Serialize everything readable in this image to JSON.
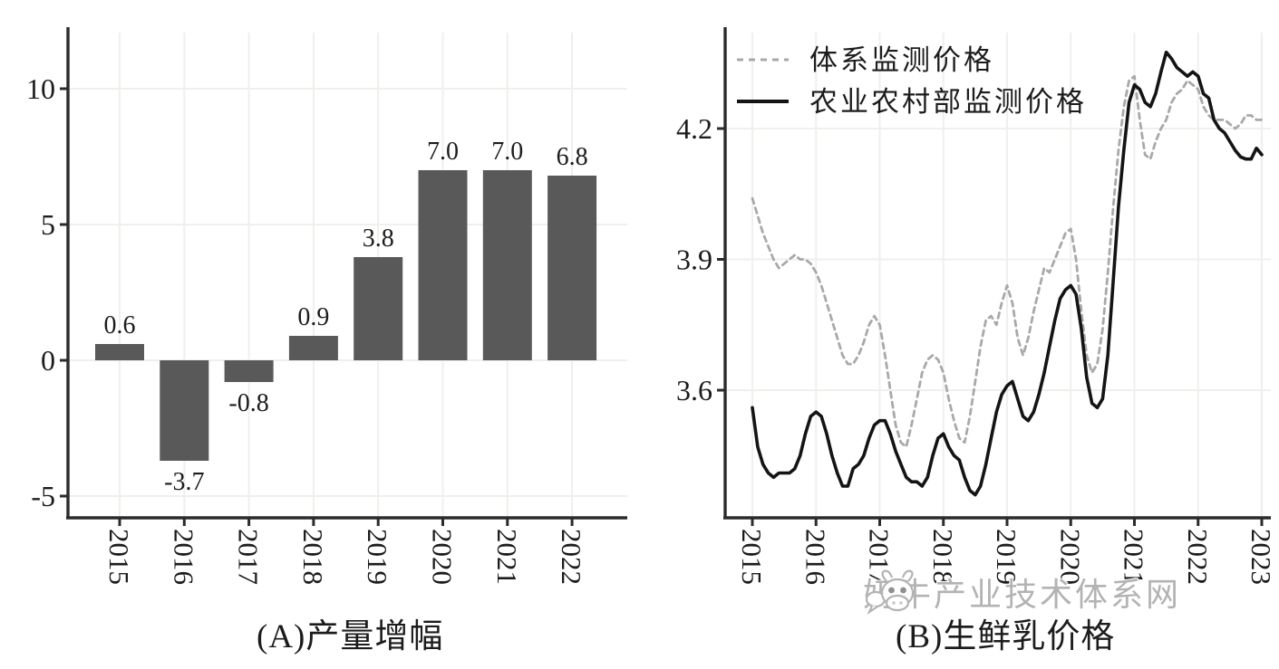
{
  "colors": {
    "bar": "#595959",
    "axis": "#2b2b2b",
    "grid": "#f0efec",
    "label_text": "#1c1c1c",
    "dashed_series": "#a9a9a9",
    "solid_series": "#141414",
    "watermark": "#a8a8a8"
  },
  "watermark": {
    "icon": "cow-face-icon",
    "text": "奶牛产业技术体系网"
  },
  "chart_data": [
    {
      "type": "bar",
      "title": "(A)产量增幅",
      "categories": [
        "2015",
        "2016",
        "2017",
        "2018",
        "2019",
        "2020",
        "2021",
        "2022"
      ],
      "values": [
        0.6,
        -3.7,
        -0.8,
        0.9,
        3.8,
        7.0,
        7.0,
        6.8
      ],
      "bar_labels": [
        "0.6",
        "-3.7",
        "-0.8",
        "0.9",
        "3.8",
        "7.0",
        "7.0",
        "6.8"
      ],
      "y_ticks": [
        10,
        5,
        0,
        -5
      ],
      "ylim": [
        -6.6,
        12.3
      ],
      "grid": true,
      "legend_position": "none"
    },
    {
      "type": "line",
      "title": "(B)生鲜乳价格",
      "x_ticks": [
        "2015",
        "2016",
        "2017",
        "2018",
        "2019",
        "2020",
        "2021",
        "2022",
        "2023"
      ],
      "y_ticks": [
        "4.2",
        "3.9",
        "3.6"
      ],
      "y_tick_values": [
        4.2,
        3.9,
        3.6
      ],
      "xlim": [
        2015,
        2023.15
      ],
      "ylim": [
        3.305,
        4.42
      ],
      "grid": true,
      "legend_position": "top-left",
      "x_start": 2015,
      "x_step_months": 1,
      "series": [
        {
          "name": "体系监测价格",
          "style": "dashed",
          "y": [
            4.04,
            4.0,
            3.96,
            3.93,
            3.9,
            3.88,
            3.89,
            3.9,
            3.91,
            3.9,
            3.9,
            3.89,
            3.87,
            3.84,
            3.8,
            3.76,
            3.72,
            3.68,
            3.66,
            3.66,
            3.68,
            3.71,
            3.75,
            3.77,
            3.75,
            3.68,
            3.6,
            3.52,
            3.48,
            3.47,
            3.52,
            3.58,
            3.64,
            3.67,
            3.68,
            3.67,
            3.64,
            3.58,
            3.53,
            3.49,
            3.48,
            3.54,
            3.62,
            3.7,
            3.76,
            3.77,
            3.75,
            3.8,
            3.84,
            3.8,
            3.72,
            3.68,
            3.72,
            3.78,
            3.83,
            3.88,
            3.87,
            3.9,
            3.93,
            3.96,
            3.97,
            3.9,
            3.78,
            3.68,
            3.64,
            3.66,
            3.74,
            3.87,
            4.02,
            4.15,
            4.25,
            4.31,
            4.32,
            4.22,
            4.14,
            4.13,
            4.17,
            4.2,
            4.22,
            4.26,
            4.28,
            4.29,
            4.31,
            4.3,
            4.29,
            4.25,
            4.23,
            4.22,
            4.22,
            4.22,
            4.21,
            4.2,
            4.21,
            4.23,
            4.23,
            4.22,
            4.22
          ]
        },
        {
          "name": "农业农村部监测价格",
          "style": "solid",
          "y": [
            3.56,
            3.47,
            3.43,
            3.41,
            3.4,
            3.41,
            3.41,
            3.41,
            3.42,
            3.45,
            3.5,
            3.54,
            3.55,
            3.54,
            3.5,
            3.45,
            3.41,
            3.38,
            3.38,
            3.42,
            3.43,
            3.45,
            3.49,
            3.52,
            3.53,
            3.53,
            3.5,
            3.46,
            3.43,
            3.4,
            3.39,
            3.39,
            3.38,
            3.4,
            3.45,
            3.49,
            3.5,
            3.47,
            3.45,
            3.44,
            3.4,
            3.37,
            3.36,
            3.38,
            3.43,
            3.49,
            3.55,
            3.59,
            3.61,
            3.62,
            3.58,
            3.54,
            3.53,
            3.55,
            3.59,
            3.64,
            3.7,
            3.76,
            3.81,
            3.83,
            3.84,
            3.82,
            3.74,
            3.63,
            3.57,
            3.56,
            3.58,
            3.68,
            3.85,
            4.02,
            4.15,
            4.26,
            4.3,
            4.29,
            4.26,
            4.25,
            4.28,
            4.33,
            4.375,
            4.36,
            4.34,
            4.33,
            4.32,
            4.33,
            4.32,
            4.28,
            4.27,
            4.22,
            4.2,
            4.19,
            4.17,
            4.15,
            4.135,
            4.13,
            4.13,
            4.155,
            4.14
          ]
        }
      ]
    }
  ]
}
